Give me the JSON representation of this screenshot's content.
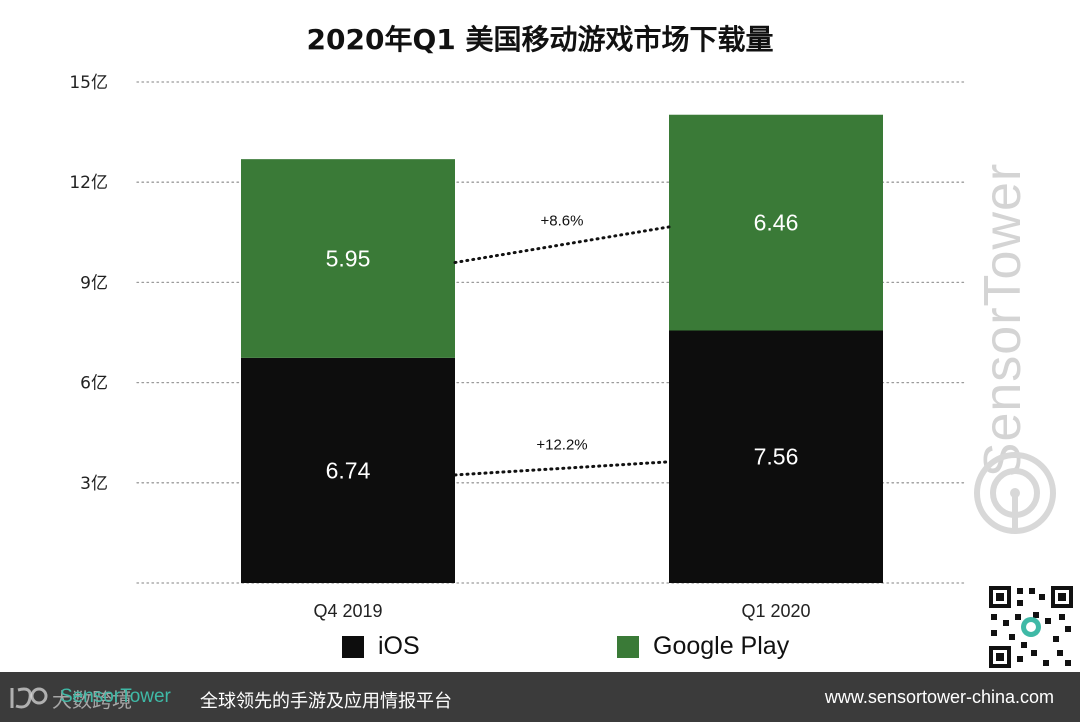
{
  "chart_data": {
    "type": "bar",
    "stacked": true,
    "title": "2020年Q1 美国移动游戏市场下载量",
    "categories": [
      "Q4  2019",
      "Q1 2020"
    ],
    "series": [
      {
        "name": "iOS",
        "values": [
          6.74,
          7.56
        ],
        "color": "#0d0d0d"
      },
      {
        "name": "Google Play",
        "values": [
          5.95,
          6.46
        ],
        "color": "#3a7a37"
      }
    ],
    "y_ticks": [
      {
        "value": 3,
        "label": "3亿"
      },
      {
        "value": 6,
        "label": "6亿"
      },
      {
        "value": 9,
        "label": "9亿"
      },
      {
        "value": 12,
        "label": "12亿"
      },
      {
        "value": 15,
        "label": "15亿"
      }
    ],
    "ylim": [
      0,
      15
    ],
    "grid": "dotted",
    "legend_position": "bottom",
    "growth_annotations": [
      {
        "series": "Google Play",
        "label": "+8.6%"
      },
      {
        "series": "iOS",
        "label": "+12.2%"
      }
    ]
  },
  "watermark": {
    "text": "SensorTower"
  },
  "footer": {
    "brand": "SensorTower",
    "tagline": "全球领先的手游及应用情报平台",
    "url": "www.sensortower-china.com",
    "overlay_logo_text": "大数跨境"
  },
  "colors": {
    "ios": "#0d0d0d",
    "google_play": "#3a7a37",
    "footer_bg": "#3b3b3b",
    "brand": "#3fb9a6"
  }
}
